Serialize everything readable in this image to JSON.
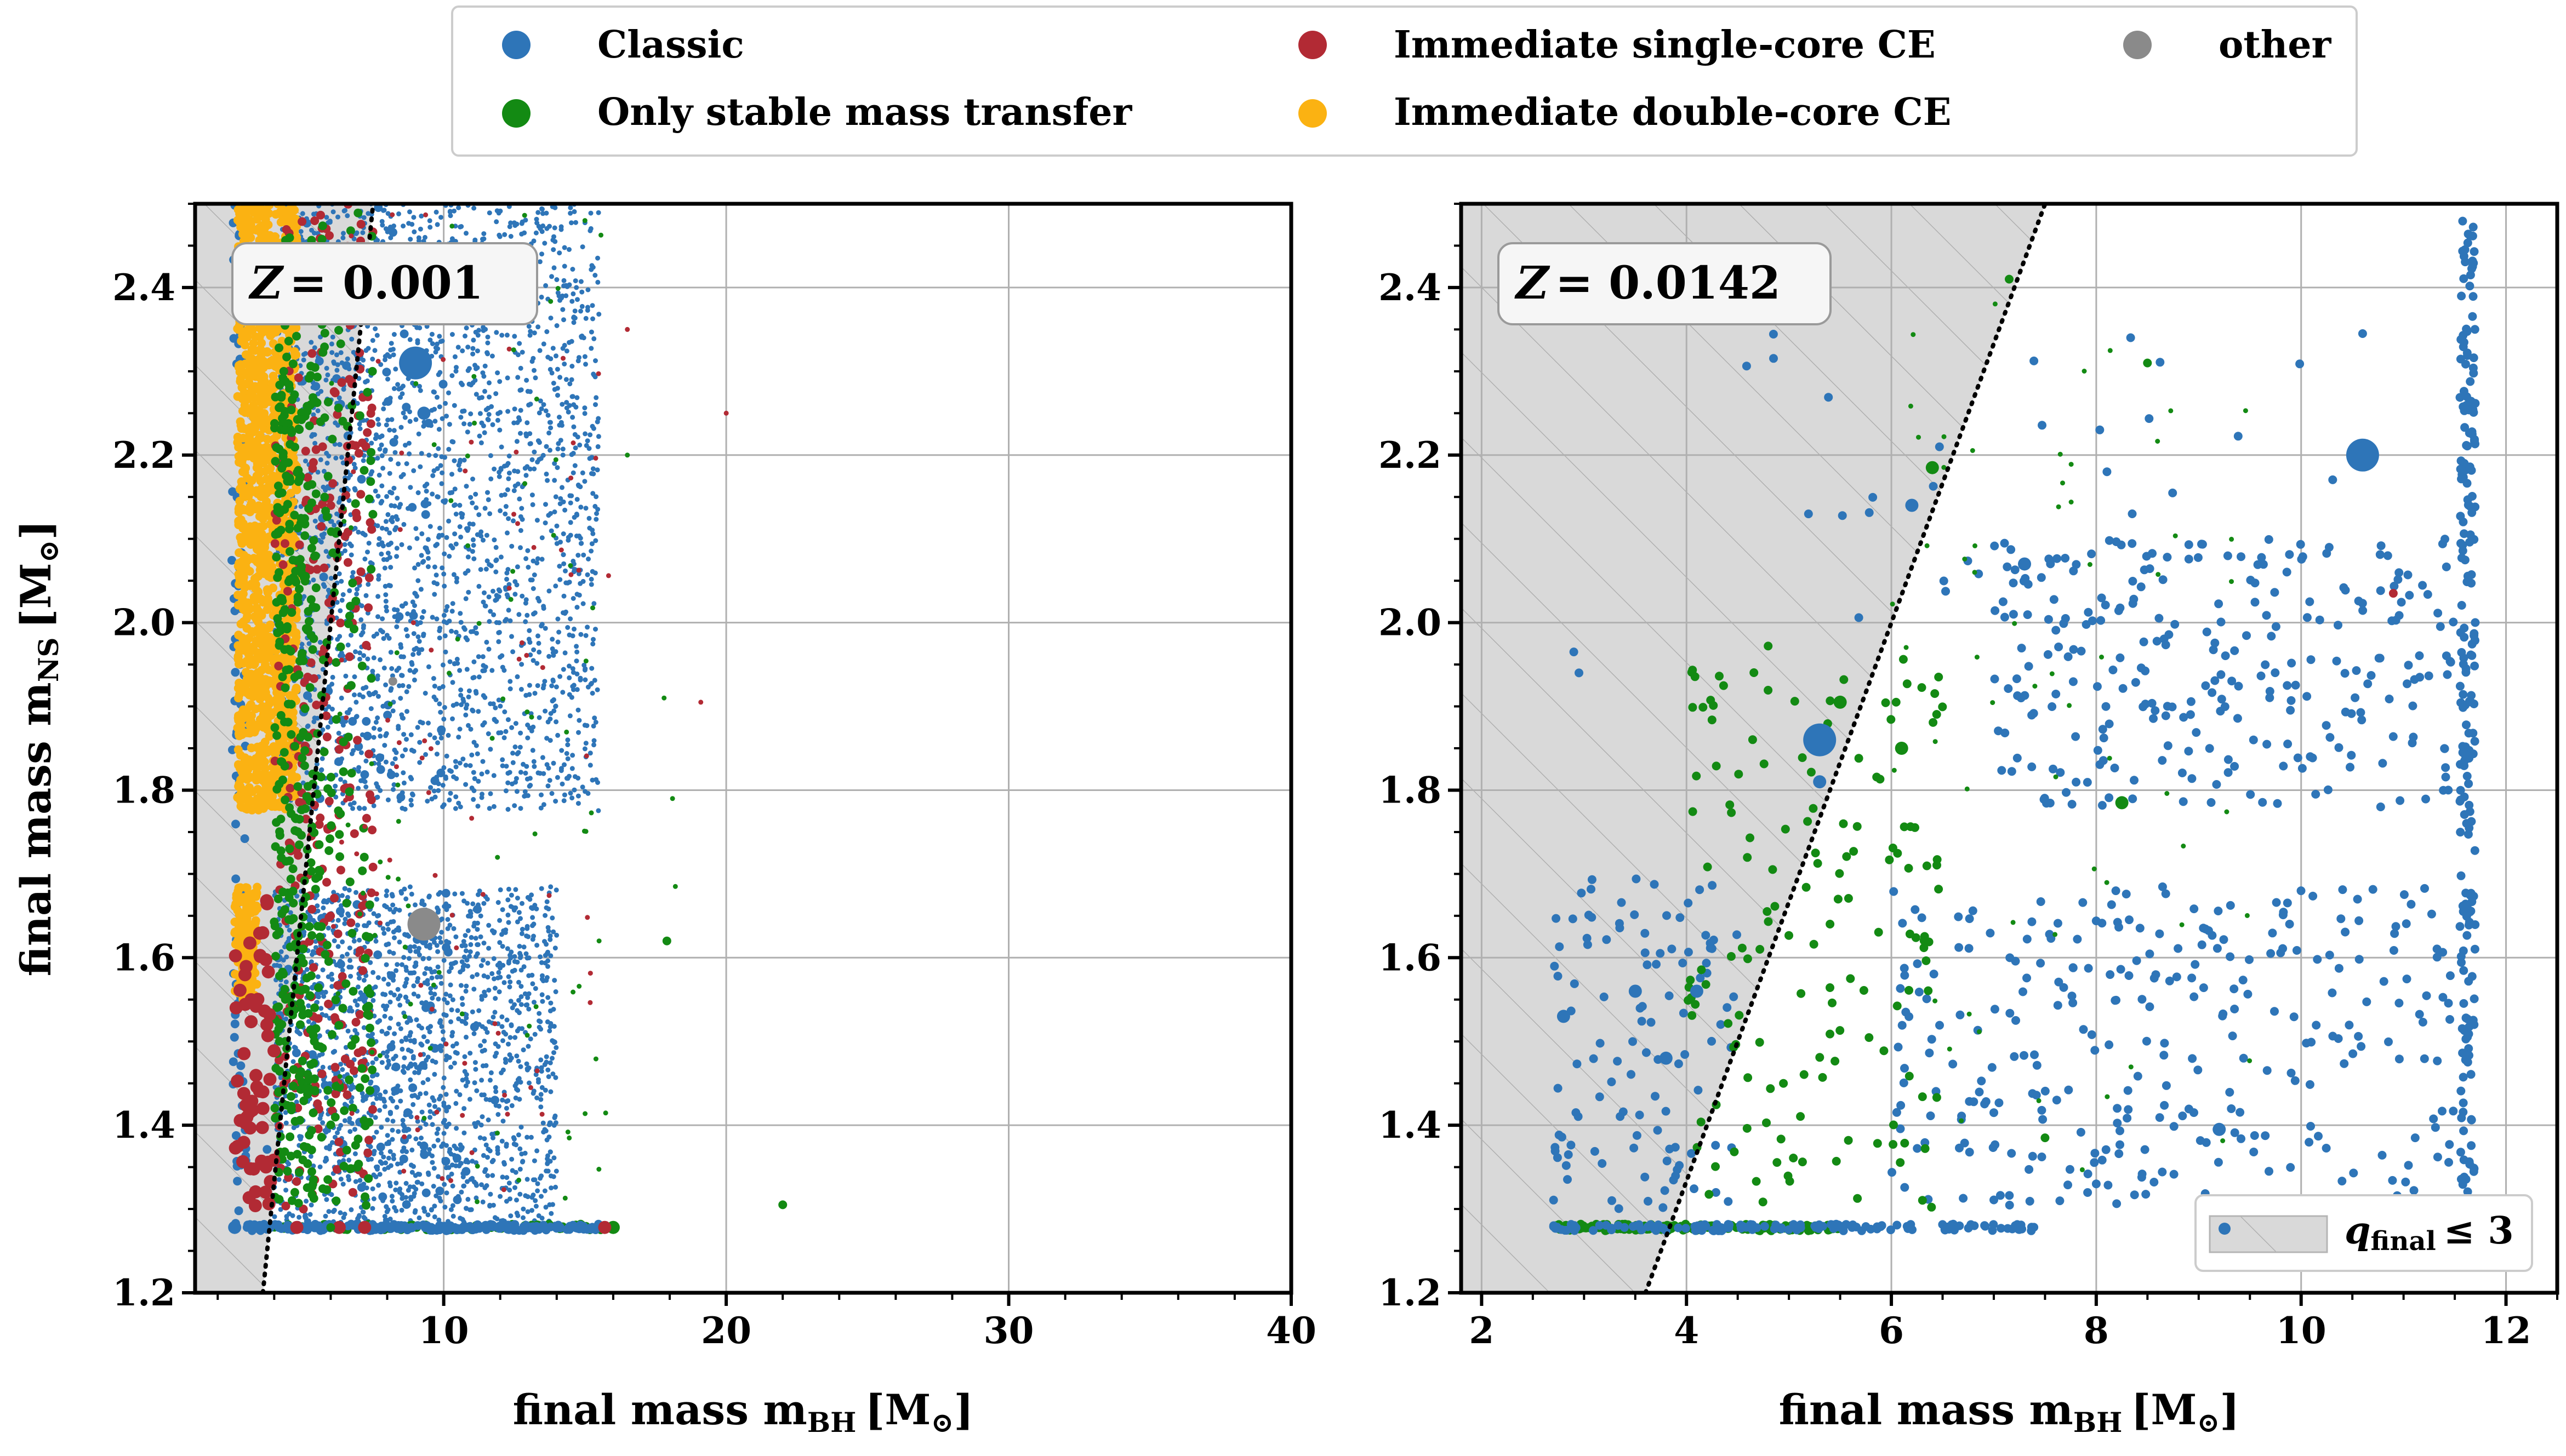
{
  "legend": {
    "items": [
      {
        "label": "Classic",
        "color": "#2e75b8"
      },
      {
        "label": "Only stable mass transfer",
        "color": "#138a13"
      },
      {
        "label": "Immediate single-core CE",
        "color": "#b22a34"
      },
      {
        "label": "Immediate double-core CE",
        "color": "#fbb212"
      },
      {
        "label": "other",
        "color": "#8a8a8a"
      }
    ]
  },
  "chart_data": [
    {
      "type": "scatter",
      "panel": "left",
      "annotation_prefix": "Z",
      "annotation_value": "= 0.001",
      "xlabel": "final mass m",
      "xlabel_sub": "BH",
      "xlabel_unit": "[M",
      "ylabel": "final mass m",
      "ylabel_sub": "NS",
      "ylabel_unit": "[M",
      "xlim": [
        1.2,
        40
      ],
      "ylim": [
        1.2,
        2.5
      ],
      "x_ticks": [
        10,
        20,
        30,
        40
      ],
      "x_tick_labels": [
        "10",
        "20",
        "30",
        "40"
      ],
      "y_ticks": [
        1.2,
        1.4,
        1.6,
        1.8,
        2.0,
        2.2,
        2.4
      ],
      "y_tick_labels": [
        "1.2",
        "1.4",
        "1.6",
        "1.8",
        "2.0",
        "2.2",
        "2.4"
      ],
      "grid": true,
      "shaded_region": "q_final <= 3 (m_BH <= 3 m_NS)",
      "boundary_line": {
        "slope_y_per_x": 0.3333,
        "style": "dotted"
      },
      "points": [
        {
          "x": 9.0,
          "y": 2.31,
          "class": "Classic",
          "size": 3
        },
        {
          "x": 9.3,
          "y": 2.25,
          "class": "Classic",
          "size": 2
        },
        {
          "x": 9.3,
          "y": 1.64,
          "class": "other",
          "size": 3
        },
        {
          "x": 8.2,
          "y": 1.93,
          "class": "other",
          "size": 1
        },
        {
          "x": 20.0,
          "y": 2.25,
          "class": "Immediate single-core CE",
          "size": 0
        },
        {
          "x": 22.0,
          "y": 1.305,
          "class": "Only stable mass transfer",
          "size": 1
        },
        {
          "x": 18.2,
          "y": 1.685,
          "class": "Only stable mass transfer",
          "size": 0
        },
        {
          "x": 17.9,
          "y": 1.62,
          "class": "Only stable mass transfer",
          "size": 1
        },
        {
          "x": 18.1,
          "y": 1.79,
          "class": "Only stable mass transfer",
          "size": 0
        },
        {
          "x": 17.8,
          "y": 1.91,
          "class": "Only stable mass transfer",
          "size": 0
        },
        {
          "x": 19.1,
          "y": 1.905,
          "class": "Immediate single-core CE",
          "size": 0
        },
        {
          "x": 16.0,
          "y": 1.278,
          "class": "Only stable mass transfer",
          "size": 2
        },
        {
          "x": 15.7,
          "y": 1.278,
          "class": "Immediate single-core CE",
          "size": 2
        },
        {
          "x": 12.3,
          "y": 1.278,
          "class": "Classic",
          "size": 2
        },
        {
          "x": 7.2,
          "y": 1.278,
          "class": "Immediate single-core CE",
          "size": 2
        },
        {
          "x": 6.3,
          "y": 1.278,
          "class": "Immediate single-core CE",
          "size": 2
        },
        {
          "x": 4.8,
          "y": 1.278,
          "class": "Immediate single-core CE",
          "size": 2
        },
        {
          "x": 2.6,
          "y": 1.278,
          "class": "Classic",
          "size": 2
        },
        {
          "x": 3.5,
          "y": 1.278,
          "class": "Classic",
          "size": 2
        },
        {
          "x": 6.0,
          "y": 1.278,
          "class": "Only stable mass transfer",
          "size": 1
        },
        {
          "x": 9.5,
          "y": 1.278,
          "class": "Classic",
          "size": 1
        },
        {
          "x": 14.5,
          "y": 1.278,
          "class": "Classic",
          "size": 1
        },
        {
          "x": 15.0,
          "y": 2.48,
          "class": "Only stable mass transfer",
          "size": 0
        },
        {
          "x": 16.5,
          "y": 2.35,
          "class": "Immediate single-core CE",
          "size": 0
        },
        {
          "x": 16.5,
          "y": 2.2,
          "class": "Only stable mass transfer",
          "size": 0
        },
        {
          "x": 15.5,
          "y": 1.62,
          "class": "Only stable mass transfer",
          "size": 0
        }
      ],
      "point_clouds": [
        {
          "class": "Classic",
          "x_range": [
            4.0,
            15.5
          ],
          "y_range": [
            1.775,
            2.5
          ],
          "count": 2300,
          "size": 0
        },
        {
          "class": "Classic",
          "x_range": [
            4.0,
            14.0
          ],
          "y_range": [
            1.28,
            1.685
          ],
          "count": 1700,
          "size": 0
        },
        {
          "class": "Classic",
          "x_range": [
            5.0,
            10.0
          ],
          "y_range": [
            1.775,
            2.5
          ],
          "count": 60,
          "size": 1
        },
        {
          "class": "Classic",
          "x_range": [
            2.7,
            12.0
          ],
          "y_range": [
            1.3,
            1.68
          ],
          "count": 60,
          "size": 1
        },
        {
          "class": "Classic",
          "x_range": [
            2.5,
            3.0
          ],
          "y_range": [
            1.28,
            2.5
          ],
          "count": 90,
          "size": 1
        },
        {
          "class": "Immediate double-core CE",
          "x_range": [
            2.7,
            4.8
          ],
          "y_range": [
            1.775,
            2.5
          ],
          "count": 1500,
          "size": 1
        },
        {
          "class": "Immediate double-core CE",
          "x_range": [
            2.6,
            3.4
          ],
          "y_range": [
            1.55,
            1.685
          ],
          "count": 150,
          "size": 1
        },
        {
          "class": "Immediate single-core CE",
          "x_range": [
            4.0,
            7.5
          ],
          "y_range": [
            1.3,
            2.5
          ],
          "count": 300,
          "size": 1
        },
        {
          "class": "Only stable mass transfer",
          "x_range": [
            4.0,
            7.5
          ],
          "y_range": [
            1.3,
            2.5
          ],
          "count": 300,
          "size": 1
        },
        {
          "class": "Only stable mass transfer",
          "x_range": [
            4.0,
            5.5
          ],
          "y_range": [
            1.3,
            2.3
          ],
          "count": 250,
          "size": 1
        },
        {
          "class": "Immediate single-core CE",
          "x_range": [
            6.0,
            16.0
          ],
          "y_range": [
            1.3,
            2.5
          ],
          "count": 90,
          "size": 0
        },
        {
          "class": "Only stable mass transfer",
          "x_range": [
            6.0,
            16.0
          ],
          "y_range": [
            1.3,
            2.5
          ],
          "count": 90,
          "size": 0
        },
        {
          "class": "Immediate single-core CE",
          "x_range": [
            2.6,
            4.0
          ],
          "y_range": [
            1.3,
            1.68
          ],
          "count": 60,
          "size": 2
        },
        {
          "class": "Only stable mass transfer",
          "x_range": [
            3.0,
            16.0
          ],
          "y_range": [
            1.275,
            1.282
          ],
          "count": 80,
          "size": 1
        },
        {
          "class": "Classic",
          "x_range": [
            3.0,
            15.5
          ],
          "y_range": [
            1.274,
            1.282
          ],
          "count": 200,
          "size": 1
        }
      ]
    },
    {
      "type": "scatter",
      "panel": "right",
      "annotation_prefix": "Z",
      "annotation_value": "= 0.0142",
      "xlabel": "final mass m",
      "xlabel_sub": "BH",
      "xlabel_unit": "[M",
      "ylabel": "",
      "xlim": [
        1.8,
        12.5
      ],
      "ylim": [
        1.2,
        2.5
      ],
      "x_ticks": [
        2,
        4,
        6,
        8,
        10,
        12
      ],
      "x_tick_labels": [
        "2",
        "4",
        "6",
        "8",
        "10",
        "12"
      ],
      "y_ticks": [
        1.2,
        1.4,
        1.6,
        1.8,
        2.0,
        2.2,
        2.4
      ],
      "y_tick_labels": [
        "1.2",
        "1.4",
        "1.6",
        "1.8",
        "2.0",
        "2.2",
        "2.4"
      ],
      "grid": true,
      "shaded_region": "q_final <= 3 (m_BH <= 3 m_NS)",
      "boundary_line": {
        "slope_y_per_x": 0.3333,
        "style": "dotted"
      },
      "shade_legend_label": "q",
      "shade_legend_sub": "final",
      "shade_legend_rel": "≤ 3",
      "points": [
        {
          "x": 5.3,
          "y": 1.86,
          "class": "Classic",
          "size": 3
        },
        {
          "x": 5.3,
          "y": 1.81,
          "class": "Classic",
          "size": 2
        },
        {
          "x": 6.2,
          "y": 2.14,
          "class": "Classic",
          "size": 2
        },
        {
          "x": 7.3,
          "y": 2.07,
          "class": "Classic",
          "size": 2
        },
        {
          "x": 10.6,
          "y": 2.2,
          "class": "Classic",
          "size": 3
        },
        {
          "x": 9.2,
          "y": 1.395,
          "class": "Classic",
          "size": 2
        },
        {
          "x": 10.6,
          "y": 2.345,
          "class": "Classic",
          "size": 1
        },
        {
          "x": 10.9,
          "y": 2.035,
          "class": "Immediate single-core CE",
          "size": 1
        },
        {
          "x": 6.4,
          "y": 2.185,
          "class": "Only stable mass transfer",
          "size": 2
        },
        {
          "x": 5.5,
          "y": 1.905,
          "class": "Only stable mass transfer",
          "size": 2
        },
        {
          "x": 6.1,
          "y": 1.85,
          "class": "Only stable mass transfer",
          "size": 2
        },
        {
          "x": 8.25,
          "y": 1.785,
          "class": "Only stable mass transfer",
          "size": 2
        },
        {
          "x": 7.15,
          "y": 2.41,
          "class": "Only stable mass transfer",
          "size": 1
        },
        {
          "x": 8.5,
          "y": 2.31,
          "class": "Only stable mass transfer",
          "size": 1
        },
        {
          "x": 2.9,
          "y": 1.965,
          "class": "Classic",
          "size": 1
        },
        {
          "x": 2.95,
          "y": 1.94,
          "class": "Classic",
          "size": 1
        },
        {
          "x": 3.5,
          "y": 1.56,
          "class": "Classic",
          "size": 2
        },
        {
          "x": 3.8,
          "y": 1.48,
          "class": "Classic",
          "size": 2
        },
        {
          "x": 4.1,
          "y": 1.56,
          "class": "Classic",
          "size": 2
        },
        {
          "x": 2.8,
          "y": 1.53,
          "class": "Classic",
          "size": 2
        },
        {
          "x": 8.0,
          "y": 1.33,
          "class": "Classic",
          "size": 1
        },
        {
          "x": 7.0,
          "y": 1.415,
          "class": "Classic",
          "size": 1
        },
        {
          "x": 7.7,
          "y": 2.005,
          "class": "Classic",
          "size": 1
        },
        {
          "x": 5.6,
          "y": 1.575,
          "class": "Only stable mass transfer",
          "size": 1
        },
        {
          "x": 7.5,
          "y": 1.385,
          "class": "Only stable mass transfer",
          "size": 1
        }
      ],
      "point_clouds": [
        {
          "class": "Classic",
          "x_range": [
            11.55,
            11.7
          ],
          "y_range": [
            1.28,
            2.48
          ],
          "count": 220,
          "size": 1
        },
        {
          "class": "Classic",
          "x_range": [
            7.0,
            11.5
          ],
          "y_range": [
            1.78,
            2.1
          ],
          "count": 260,
          "size": 1
        },
        {
          "class": "Classic",
          "x_range": [
            6.0,
            11.5
          ],
          "y_range": [
            1.3,
            1.685
          ],
          "count": 300,
          "size": 1
        },
        {
          "class": "Classic",
          "x_range": [
            2.7,
            4.5
          ],
          "y_range": [
            1.3,
            1.7
          ],
          "count": 110,
          "size": 1
        },
        {
          "class": "Classic",
          "x_range": [
            4.5,
            10.5
          ],
          "y_range": [
            1.9,
            2.35
          ],
          "count": 40,
          "size": 1
        },
        {
          "class": "Only stable mass transfer",
          "x_range": [
            4.0,
            6.5
          ],
          "y_range": [
            1.3,
            2.0
          ],
          "count": 150,
          "size": 1
        },
        {
          "class": "Only stable mass transfer",
          "x_range": [
            6.0,
            9.5
          ],
          "y_range": [
            1.3,
            2.4
          ],
          "count": 60,
          "size": 0
        },
        {
          "class": "Only stable mass transfer",
          "x_range": [
            2.7,
            5.5
          ],
          "y_range": [
            1.274,
            1.282
          ],
          "count": 180,
          "size": 1
        },
        {
          "class": "Classic",
          "x_range": [
            2.7,
            7.4
          ],
          "y_range": [
            1.274,
            1.282
          ],
          "count": 140,
          "size": 1
        }
      ]
    }
  ]
}
